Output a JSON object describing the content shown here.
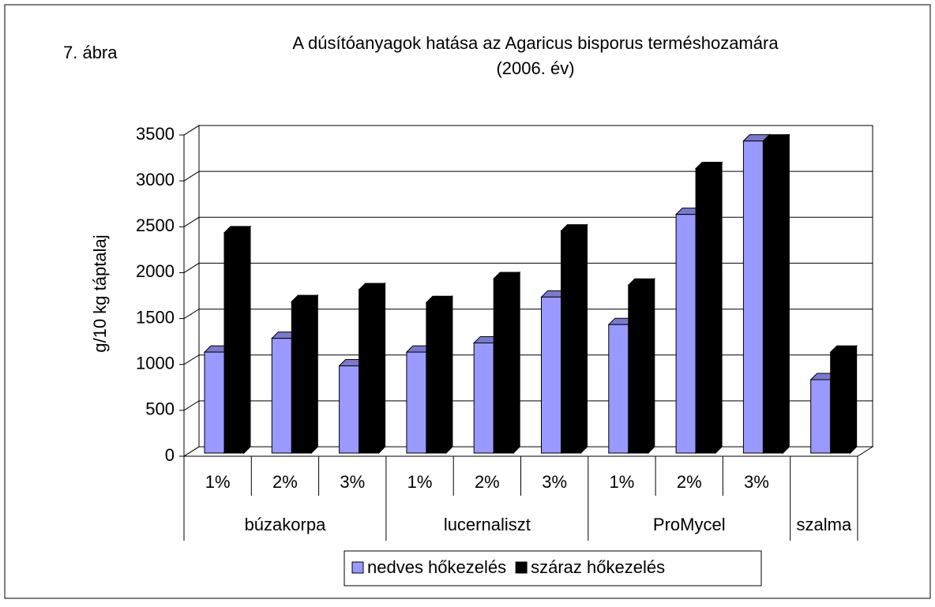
{
  "chart_data": {
    "type": "bar",
    "label": "7. ábra",
    "title": "A dúsítóanyagok hatása az Agaricus bisporus  terméshozamára",
    "subtitle": "(2006. év)",
    "y_label": "g/10 kg táptalaj",
    "categories": [
      "1%",
      "2%",
      "3%",
      "1%",
      "2%",
      "3%",
      "1%",
      "2%",
      "3%",
      null
    ],
    "groups": [
      "búzakorpa",
      "lucernaliszt",
      "ProMycel",
      "szalma"
    ],
    "series": [
      {
        "name": "nedves hőkezelés",
        "color": "#9999ff",
        "values": [
          1100,
          1250,
          950,
          1100,
          1200,
          1700,
          1400,
          2600,
          3400,
          800
        ]
      },
      {
        "name": "száraz hőkezelés",
        "color": "#000000",
        "values": [
          2400,
          1650,
          1780,
          1640,
          1900,
          2420,
          1830,
          3100,
          3400,
          1100
        ]
      }
    ],
    "ylim": [
      0,
      3500
    ],
    "yticks": [
      0,
      500,
      1000,
      1500,
      2000,
      2500,
      3000,
      3500
    ],
    "grid": true,
    "legend": "bottom"
  }
}
